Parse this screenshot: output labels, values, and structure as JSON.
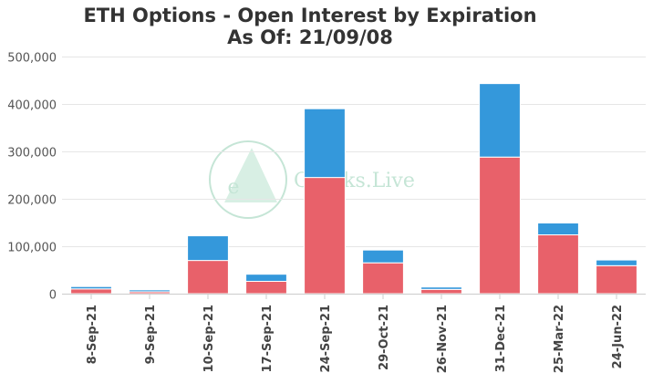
{
  "chart_data": {
    "type": "bar",
    "stacked": true,
    "title": "ETH Options - Open Interest by Expiration",
    "subtitle": "As Of: 21/09/08",
    "xlabel": "",
    "ylabel": "",
    "categories": [
      "8-Sep-21",
      "9-Sep-21",
      "10-Sep-21",
      "17-Sep-21",
      "24-Sep-21",
      "29-Oct-21",
      "26-Nov-21",
      "31-Dec-21",
      "25-Mar-22",
      "24-Jun-22"
    ],
    "series": [
      {
        "color": "#e8616a",
        "values": [
          10000,
          4000,
          70000,
          26000,
          245000,
          65000,
          9000,
          288000,
          124000,
          59000
        ]
      },
      {
        "color": "#3498db",
        "values": [
          5000,
          4000,
          52000,
          15000,
          145000,
          27000,
          5000,
          155000,
          25000,
          12000
        ]
      }
    ],
    "ylim": [
      0,
      500000
    ],
    "yticks": [
      0,
      100000,
      200000,
      300000,
      400000,
      500000
    ],
    "ytick_labels": [
      "0",
      "100,000",
      "200,000",
      "300,000",
      "400,000",
      "500,000"
    ],
    "grid": true,
    "legend": "none"
  },
  "watermark": {
    "text": "Greeks.Live",
    "logo_letter": "e",
    "color": "#bfe3d2"
  }
}
